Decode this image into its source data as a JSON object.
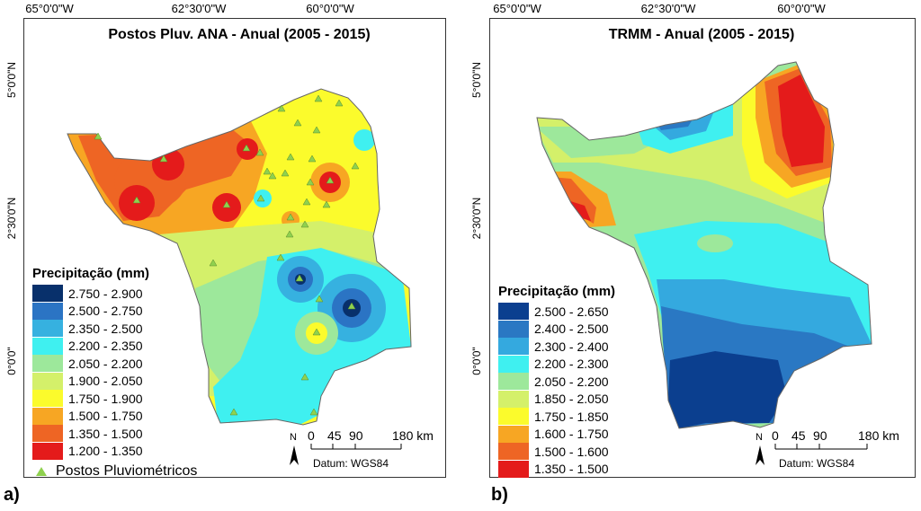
{
  "panel_a": {
    "label": "a)",
    "title": "Postos Pluv. ANA - Anual (2005 - 2015)",
    "top_ticks": [
      "65°0'0\"W",
      "62°30'0\"W",
      "60°0'0\"W"
    ],
    "left_ticks": [
      "5°0'0\"N",
      "2°30'0\"N",
      "0°0'0\""
    ],
    "legend_title": "Precipitação (mm)",
    "legend": [
      {
        "label": "2.750  -  2.900",
        "color": "#08306b"
      },
      {
        "label": "2.500  -  2.750",
        "color": "#2b74c4"
      },
      {
        "label": "2.350  -  2.500",
        "color": "#36b1e0"
      },
      {
        "label": "2.200  -  2.350",
        "color": "#3ff0f0"
      },
      {
        "label": "2.050  -  2.200",
        "color": "#9de89b"
      },
      {
        "label": "1.900  -  2.050",
        "color": "#d4f06a"
      },
      {
        "label": "1.750  -  1.900",
        "color": "#fbfb2c"
      },
      {
        "label": "1.500  -  1.750",
        "color": "#f7a623"
      },
      {
        "label": "1.350  -  1.500",
        "color": "#ee6524"
      },
      {
        "label": "1.200  -  1.350",
        "color": "#e41b1b"
      }
    ],
    "stations_label": "Postos Pluviométricos",
    "scale": {
      "ticks": [
        "0",
        "45",
        "90",
        "180 km"
      ],
      "north": "N",
      "datum": "Datum: WGS84"
    }
  },
  "panel_b": {
    "label": "b)",
    "title": "TRMM - Anual (2005 - 2015)",
    "top_ticks": [
      "65°0'0\"W",
      "62°30'0\"W",
      "60°0'0\"W"
    ],
    "left_ticks": [
      "5°0'0\"N",
      "2°30'0\"N",
      "0°0'0\""
    ],
    "legend_title": "Precipitação (mm)",
    "legend": [
      {
        "label": "2.500  -  2.650",
        "color": "#0b3f8f"
      },
      {
        "label": "2.400  -  2.500",
        "color": "#2a78c3"
      },
      {
        "label": "2.300  -  2.400",
        "color": "#34a9df"
      },
      {
        "label": "2.200  -  2.300",
        "color": "#3ff0f0"
      },
      {
        "label": "2.050  -  2.200",
        "color": "#9de89b"
      },
      {
        "label": "1.850  -  2.050",
        "color": "#d4f06a"
      },
      {
        "label": "1.750  -  1.850",
        "color": "#fbfb2c"
      },
      {
        "label": "1.600  -  1.750",
        "color": "#f7a623"
      },
      {
        "label": "1.500  -  1.600",
        "color": "#ee6524"
      },
      {
        "label": "1.350  -  1.500",
        "color": "#e41b1b"
      }
    ],
    "scale": {
      "ticks": [
        "0",
        "45",
        "90",
        "180 km"
      ],
      "north": "N",
      "datum": "Datum: WGS84"
    }
  }
}
